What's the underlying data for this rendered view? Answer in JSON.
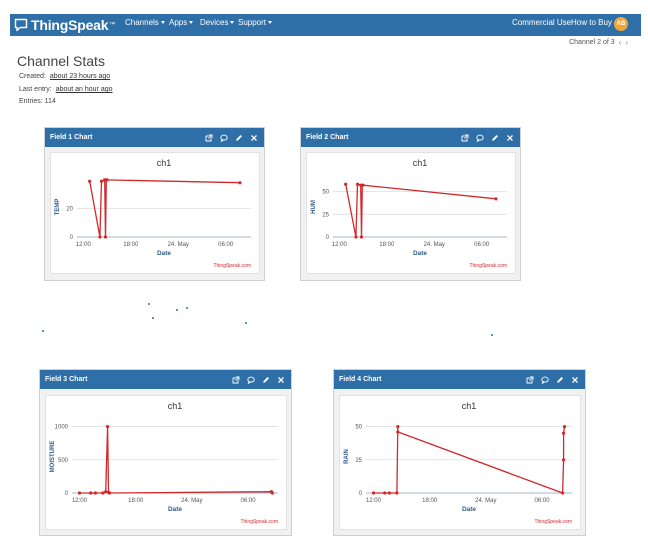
{
  "header": {
    "brand": "ThingSpeak",
    "brand_tm": "™",
    "nav": [
      "Channels",
      "Apps",
      "Devices",
      "Support"
    ],
    "right": [
      "Commercial Use",
      "How to Buy"
    ],
    "avatar": "AB"
  },
  "pager": {
    "label": "Channel 2 of 3"
  },
  "page": {
    "title": "Channel Stats",
    "created_label": "Created:",
    "created_value": "about 23 hours ago",
    "last_entry_label": "Last entry:",
    "last_entry_value": "about an hour ago",
    "entries_label": "Entries: 114"
  },
  "panels": [
    {
      "title": "Field 1 Chart"
    },
    {
      "title": "Field 2 Chart"
    },
    {
      "title": "Field 3 Chart"
    },
    {
      "title": "Field 4 Chart"
    }
  ],
  "icons": [
    "external-link-icon",
    "comment-icon",
    "pencil-icon",
    "close-icon"
  ],
  "colors": {
    "accent": "#2f6fa8",
    "series": "#d0292b",
    "avatar": "#f0a73a"
  },
  "chart_data": [
    {
      "type": "line",
      "title": "ch1",
      "xlabel": "Date",
      "ylabel": "TEMP",
      "xticks": [
        "12:00",
        "18:00",
        "24. May",
        "06:00"
      ],
      "yticks": [
        0,
        20
      ],
      "ylim": [
        0,
        42
      ],
      "credit": "ThingSpeak.com",
      "series": [
        {
          "x": [
            0.6,
            1.9,
            2.1,
            2.5,
            2.6,
            2.7,
            2.8,
            19.6
          ],
          "y": [
            39,
            0,
            39,
            40,
            0,
            40,
            40,
            38
          ]
        }
      ],
      "xlim": [
        -1,
        21
      ]
    },
    {
      "type": "line",
      "title": "ch1",
      "xlabel": "Date",
      "ylabel": "HUM",
      "xticks": [
        "12:00",
        "18:00",
        "24. May",
        "06:00"
      ],
      "yticks": [
        0,
        25,
        50
      ],
      "ylim": [
        0,
        66
      ],
      "credit": "ThingSpeak.com",
      "series": [
        {
          "x": [
            0.6,
            1.9,
            2.1,
            2.5,
            2.6,
            2.7,
            2.8,
            19.6
          ],
          "y": [
            58,
            0,
            58,
            57,
            0,
            57,
            57,
            42
          ]
        }
      ],
      "xlim": [
        -1,
        21
      ]
    },
    {
      "type": "line",
      "title": "ch1",
      "xlabel": "Date",
      "ylabel": "MOISTURE",
      "xticks": [
        "12:00",
        "18:00",
        "24. May",
        "06:00"
      ],
      "yticks": [
        0,
        500,
        1000
      ],
      "ylim": [
        0,
        1100
      ],
      "credit": "ThingSpeak.com",
      "series": [
        {
          "x": [
            -0.2,
            1.0,
            1.5,
            2.3,
            2.6,
            2.8,
            2.9,
            3.0,
            20.3,
            20.4
          ],
          "y": [
            0,
            0,
            0,
            0,
            20,
            1000,
            10,
            0,
            20,
            0
          ]
        }
      ],
      "xlim": [
        -1,
        21
      ]
    },
    {
      "type": "line",
      "title": "ch1",
      "xlabel": "Date",
      "ylabel": "RAIN",
      "xticks": [
        "12:00",
        "18:00",
        "24. May",
        "06:00"
      ],
      "yticks": [
        0,
        25,
        50
      ],
      "ylim": [
        0,
        55
      ],
      "credit": "ThingSpeak.com",
      "series": [
        {
          "x": [
            -0.2,
            1.0,
            1.5,
            2.3,
            2.4,
            2.4,
            20.0,
            20.1,
            20.1,
            20.2
          ],
          "y": [
            0,
            0,
            0,
            0,
            50,
            46,
            0,
            25,
            45,
            50
          ]
        }
      ],
      "xlim": [
        -1,
        21
      ]
    }
  ]
}
